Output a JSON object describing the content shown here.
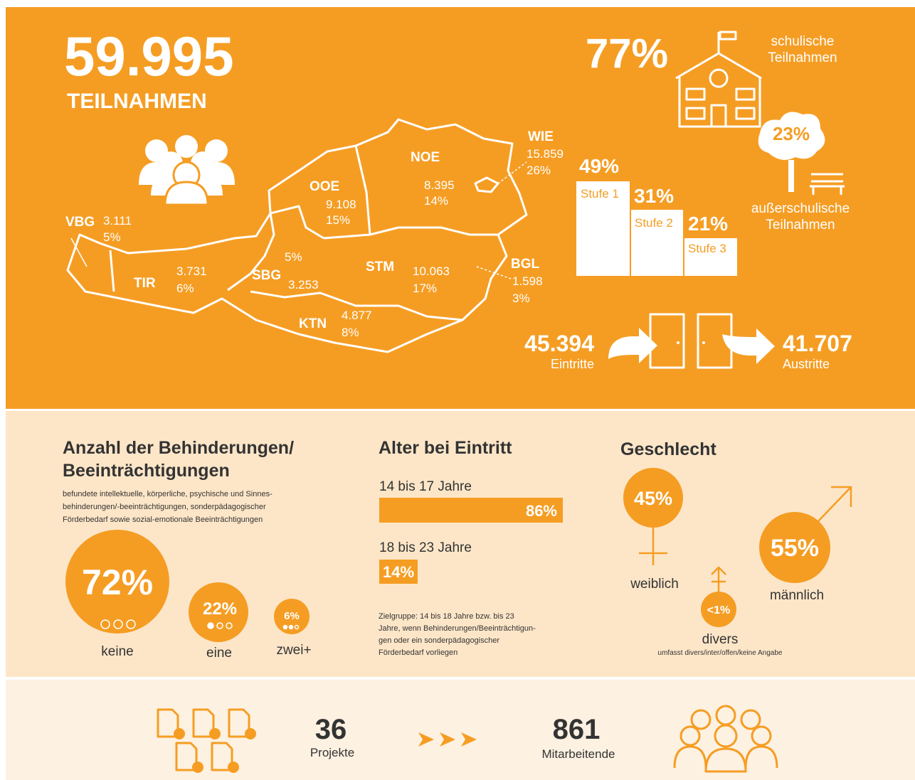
{
  "header": {
    "total": "59.995",
    "total_label": "TEILNAHMEN"
  },
  "regions": [
    {
      "code": "VBG",
      "count": "3.111",
      "share": "5%"
    },
    {
      "code": "TIR",
      "count": "3.731",
      "share": "6%"
    },
    {
      "code": "SBG",
      "count": "3.253",
      "share": "5%"
    },
    {
      "code": "OOE",
      "count": "9.108",
      "share": "15%"
    },
    {
      "code": "NOE",
      "count": "8.395",
      "share": "14%"
    },
    {
      "code": "WIE",
      "count": "15.859",
      "share": "26%"
    },
    {
      "code": "STM",
      "count": "10.063",
      "share": "17%"
    },
    {
      "code": "KTN",
      "count": "4.877",
      "share": "8%"
    },
    {
      "code": "BGL",
      "count": "1.598",
      "share": "3%"
    }
  ],
  "school": {
    "share": "77%",
    "label_lines": [
      "schulische",
      "Teilnahmen"
    ]
  },
  "outside": {
    "share": "23%",
    "label_lines": [
      "außerschulische",
      "Teilnahmen"
    ]
  },
  "stages": [
    {
      "label": "Stufe 1",
      "share": "49%"
    },
    {
      "label": "Stufe 2",
      "share": "31%"
    },
    {
      "label": "Stufe 3",
      "share": "21%"
    }
  ],
  "flow": {
    "entries": {
      "value": "45.394",
      "label": "Eintritte"
    },
    "exits": {
      "value": "41.707",
      "label": "Austritte"
    }
  },
  "disabilities": {
    "title_lines": [
      "Anzahl der Behinderungen/",
      "Beeinträchtigungen"
    ],
    "note_lines": [
      "befundete intellektuelle, körperliche, psychische und Sinnes-",
      "behinderungen/-beeinträchtigungen, sonderpädagogischer",
      "Förderbedarf sowie sozial-emotionale Beeinträchtigungen"
    ],
    "items": [
      {
        "share": "72%",
        "label": "keine"
      },
      {
        "share": "22%",
        "label": "eine"
      },
      {
        "share": "6%",
        "label": "zwei+"
      }
    ]
  },
  "age": {
    "title": "Alter bei Eintritt",
    "groups": [
      {
        "label": "14 bis 17 Jahre",
        "share": "86%"
      },
      {
        "label": "18 bis 23 Jahre",
        "share": "14%"
      }
    ],
    "note_lines": [
      "Zielgruppe: 14 bis 18 Jahre bzw. bis 23",
      "Jahre, wenn Behinderungen/Beeinträchtigun-",
      "gen oder ein sonderpädagogischer",
      "Förderbedarf vorliegen"
    ]
  },
  "gender": {
    "title": "Geschlecht",
    "items": [
      {
        "share": "45%",
        "label": "weiblich"
      },
      {
        "share": "55%",
        "label": "männlich"
      },
      {
        "share": "<1%",
        "label": "divers"
      }
    ],
    "note": "umfasst divers/inter/offen/keine Angabe"
  },
  "footer": {
    "projects": {
      "value": "36",
      "label": "Projekte"
    },
    "staff": {
      "value": "861",
      "label": "Mitarbeitende"
    }
  }
}
